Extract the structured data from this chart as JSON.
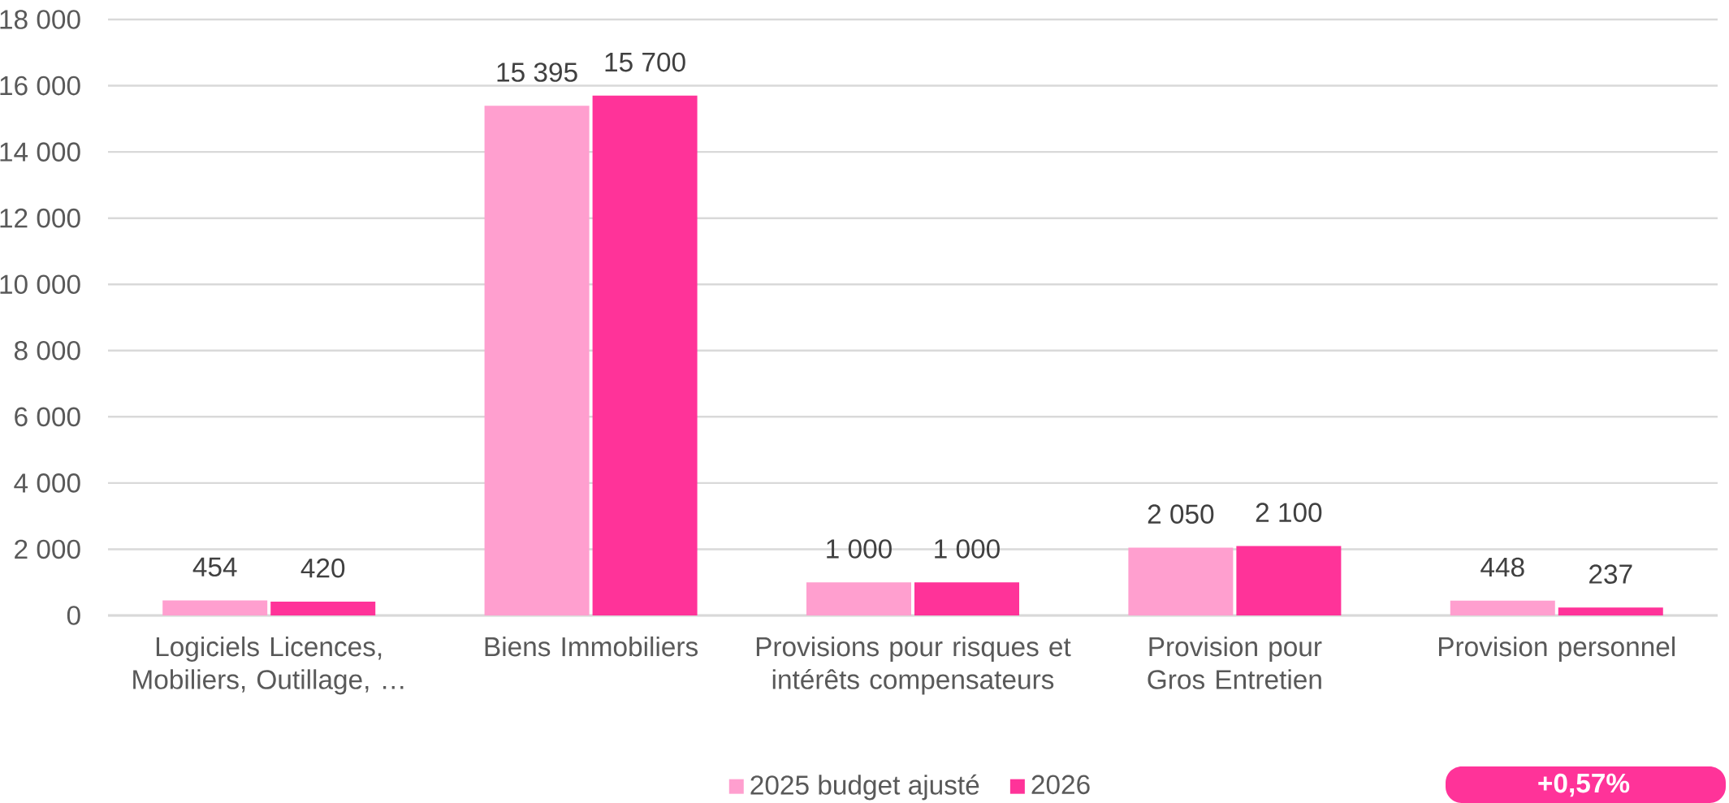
{
  "chart_data": {
    "type": "bar",
    "categories": [
      "Logiciels Licences, Mobiliers, Outillage, …",
      "Biens Immobiliers",
      "Provisions pour risques et intérêts compensateurs",
      "Provision pour Gros Entretien",
      "Provision personnel"
    ],
    "series": [
      {
        "name": "2025 budget ajusté",
        "color": "#ff9fcf",
        "values": [
          454,
          15395,
          1000,
          2050,
          448
        ],
        "value_labels": [
          "454",
          "15 395",
          "1 000",
          "2 050",
          "448"
        ]
      },
      {
        "name": "2026",
        "color": "#ff3399",
        "values": [
          420,
          15700,
          1000,
          2100,
          237
        ],
        "value_labels": [
          "420",
          "15 700",
          "1 000",
          "2 100",
          "237"
        ]
      }
    ],
    "ylim": [
      0,
      18000
    ],
    "yticks": [
      {
        "value": 0,
        "label": "0"
      },
      {
        "value": 2000,
        "label": "2 000"
      },
      {
        "value": 4000,
        "label": "4 000"
      },
      {
        "value": 6000,
        "label": "6 000"
      },
      {
        "value": 8000,
        "label": "8 000"
      },
      {
        "value": 10000,
        "label": "10 000"
      },
      {
        "value": 12000,
        "label": "12 000"
      },
      {
        "value": 14000,
        "label": "14 000"
      },
      {
        "value": 16000,
        "label": "16 000"
      },
      {
        "value": 18000,
        "label": "18 000"
      }
    ],
    "grid": "y",
    "legend": "bottom",
    "annotations": [
      "+0,57%"
    ]
  }
}
